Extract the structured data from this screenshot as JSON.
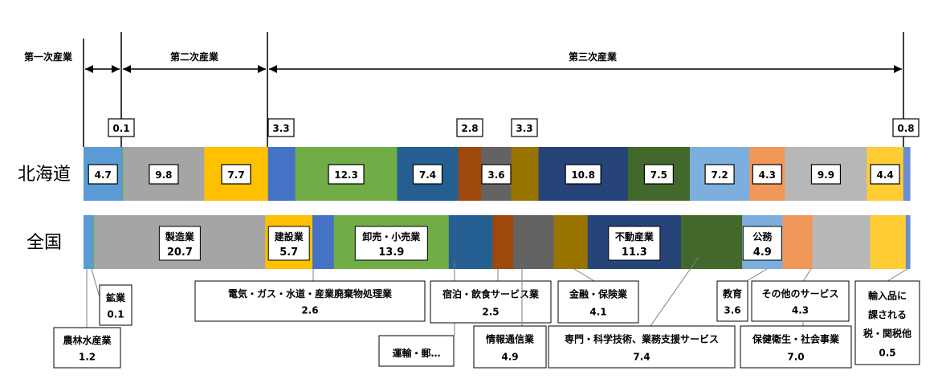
{
  "chart_data": {
    "type": "bar",
    "orientation": "horizontal-stacked-100",
    "categories": [
      "北海道",
      "全国"
    ],
    "sectors": [
      {
        "name": "第一次産業",
        "from": 0,
        "to": 1
      },
      {
        "name": "第二次産業",
        "from": 1,
        "to": 4
      },
      {
        "name": "第三次産業",
        "from": 4,
        "to": 18
      }
    ],
    "series": [
      {
        "name": "農林水産業",
        "color": "#5b9bd5",
        "hokkaido": 4.7,
        "zenkoku": 1.2
      },
      {
        "name": "鉱業",
        "color": "#70ad47",
        "hokkaido": 0.1,
        "zenkoku": 0.1
      },
      {
        "name": "製造業",
        "color": "#a5a5a5",
        "hokkaido": 9.8,
        "zenkoku": 20.7
      },
      {
        "name": "建設業",
        "color": "#ffc000",
        "hokkaido": 7.7,
        "zenkoku": 5.7
      },
      {
        "name": "電気・ガス・水道・産業廃棄物処理業",
        "color": "#4472c4",
        "hokkaido": 3.3,
        "zenkoku": 2.6
      },
      {
        "name": "卸売・小売業",
        "color": "#70ad47",
        "hokkaido": 12.3,
        "zenkoku": 13.9
      },
      {
        "name": "運輸・郵便業",
        "color": "#255e91",
        "hokkaido": 7.4,
        "zenkoku": 5.3
      },
      {
        "name": "宿泊・飲食サービス業",
        "color": "#9e480e",
        "hokkaido": 2.8,
        "zenkoku": 2.5
      },
      {
        "name": "情報通信業",
        "color": "#636363",
        "hokkaido": 3.6,
        "zenkoku": 4.9
      },
      {
        "name": "金融・保険業",
        "color": "#997300",
        "hokkaido": 3.3,
        "zenkoku": 4.1
      },
      {
        "name": "不動産業",
        "color": "#264478",
        "hokkaido": 10.8,
        "zenkoku": 11.3
      },
      {
        "name": "専門・科学技術、業務支援サービス",
        "color": "#43682b",
        "hokkaido": 7.5,
        "zenkoku": 7.4
      },
      {
        "name": "公務",
        "color": "#7cafdd",
        "hokkaido": 7.2,
        "zenkoku": 4.9
      },
      {
        "name": "教育",
        "color": "#f1975a",
        "hokkaido": 4.3,
        "zenkoku": 3.6
      },
      {
        "name": "保健衛生・社会事業",
        "color": "#b7b7b7",
        "hokkaido": 9.9,
        "zenkoku": 7.0
      },
      {
        "name": "その他のサービス",
        "color": "#ffcd33",
        "hokkaido": 4.4,
        "zenkoku": 4.3
      },
      {
        "name": "輸入品に課される税・関税他",
        "color": "#698ed0",
        "hokkaido": 0.8,
        "zenkoku": 0.5
      }
    ],
    "hokkaido_labels": [
      {
        "series": 0,
        "text": "4.7",
        "style": "box"
      },
      {
        "series": 1,
        "text": "0.1",
        "style": "above"
      },
      {
        "series": 2,
        "text": "9.8",
        "style": "box"
      },
      {
        "series": 3,
        "text": "7.7",
        "style": "box"
      },
      {
        "series": 4,
        "text": "3.3",
        "style": "above"
      },
      {
        "series": 5,
        "text": "12.3",
        "style": "box"
      },
      {
        "series": 6,
        "text": "7.4",
        "style": "box"
      },
      {
        "series": 7,
        "text": "2.8",
        "style": "above"
      },
      {
        "series": 8,
        "text": "3.6",
        "style": "box"
      },
      {
        "series": 9,
        "text": "3.3",
        "style": "above"
      },
      {
        "series": 10,
        "text": "10.8",
        "style": "box"
      },
      {
        "series": 11,
        "text": "7.5",
        "style": "box"
      },
      {
        "series": 12,
        "text": "7.2",
        "style": "box"
      },
      {
        "series": 13,
        "text": "4.3",
        "style": "box"
      },
      {
        "series": 14,
        "text": "9.9",
        "style": "box"
      },
      {
        "series": 15,
        "text": "4.4",
        "style": "box"
      },
      {
        "series": 16,
        "text": "0.8",
        "style": "above"
      }
    ],
    "zenkoku_inner_labels": [
      {
        "series": 2,
        "name": "製造業",
        "value": "20.7"
      },
      {
        "series": 3,
        "name": "建設業",
        "value": "5.7"
      },
      {
        "series": 5,
        "name": "卸売・小売業",
        "value": "13.9"
      },
      {
        "series": 10,
        "name": "不動産業",
        "value": "11.3"
      },
      {
        "series": 12,
        "name": "公務",
        "value": "4.9"
      }
    ],
    "zenkoku_callouts": [
      {
        "series": 0,
        "name": "農林水産業",
        "value": "1.2"
      },
      {
        "series": 1,
        "name": "鉱業",
        "value": "0.1"
      },
      {
        "series": 4,
        "name": "電気・ガス・水道・産業廃棄物処理業",
        "value": "2.6"
      },
      {
        "series": 6,
        "name": "運輸・郵…",
        "value": ""
      },
      {
        "series": 7,
        "name": "宿泊・飲食サービス業",
        "value": "2.5"
      },
      {
        "series": 8,
        "name": "情報通信業",
        "value": "4.9"
      },
      {
        "series": 9,
        "name": "金融・保険業",
        "value": "4.1"
      },
      {
        "series": 11,
        "name": "専門・科学技術、業務支援サービス",
        "value": "7.4"
      },
      {
        "series": 13,
        "name": "教育",
        "value": "3.6"
      },
      {
        "series": 14,
        "name": "その他のサービス",
        "value": "4.3"
      },
      {
        "series": 14,
        "name": "保健衛生・社会事業",
        "value": "7.0"
      },
      {
        "series": 16,
        "name": "輸入品に課される税・関税他",
        "value": "0.5"
      }
    ],
    "callout_texts": {
      "hokenn": [
        "保健衛生・社会事業",
        "7.0"
      ],
      "yunyu": [
        "輸入品に",
        "課される",
        "税・関税他",
        "0.5"
      ]
    },
    "title": "",
    "xlabel": "",
    "ylabel": ""
  }
}
